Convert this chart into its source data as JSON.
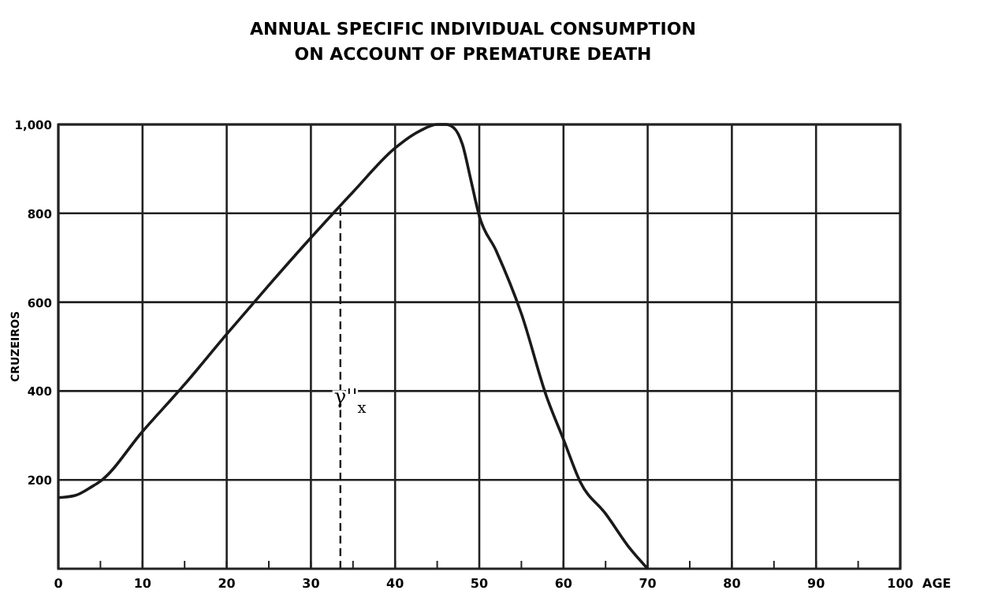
{
  "chart_data": {
    "type": "line",
    "title": "ANNUAL SPECIFIC INDIVIDUAL CONSUMPTION\nON ACCOUNT OF PREMATURE DEATH",
    "xlabel": "AGE",
    "ylabel": "CRUZEIROS",
    "x": [
      0,
      2,
      4,
      5,
      10,
      15,
      20,
      25,
      30,
      35,
      40,
      43,
      45,
      46,
      47,
      48,
      49,
      50,
      52,
      55,
      58,
      60,
      62,
      65,
      68,
      70
    ],
    "series": [
      {
        "color": "#1a1a1a",
        "values": [
          160,
          165,
          185,
          197,
          309,
          415,
          528,
          638,
          745,
          848,
          947,
          986,
          1000,
          1000,
          992,
          955,
          875,
          794,
          716,
          574,
          387,
          291,
          195,
          124,
          43,
          0
        ]
      }
    ],
    "xlim": [
      0,
      100
    ],
    "xticks": [
      0,
      10,
      20,
      30,
      40,
      50,
      60,
      70,
      80,
      90,
      100,
      {
        "value": 5,
        "label": null
      },
      {
        "value": 15,
        "label": null
      },
      {
        "value": 25,
        "label": null
      },
      {
        "value": 35,
        "label": null
      },
      {
        "value": 45,
        "label": null
      },
      {
        "value": 55,
        "label": null
      },
      {
        "value": 65,
        "label": null
      },
      {
        "value": 75,
        "label": null
      },
      {
        "value": 85,
        "label": null
      },
      {
        "value": 95,
        "label": null
      }
    ],
    "ylim": [
      0,
      1000
    ],
    "yticks": [
      200,
      400,
      600,
      800,
      {
        "value": 1000,
        "label": "1,000"
      }
    ],
    "grid": true,
    "marker": "none",
    "line_style": "solid",
    "ref_lines": [
      {
        "axis": "x",
        "value": 33.5,
        "label": "γ''$_{x}$",
        "line_style": "dashed",
        "color": "#1a1a1a"
      }
    ]
  }
}
